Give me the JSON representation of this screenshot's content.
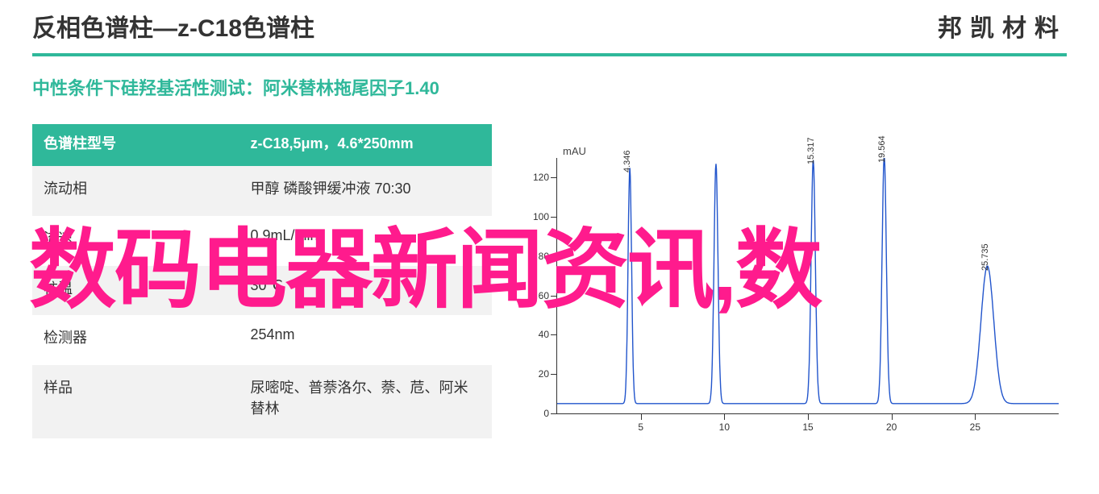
{
  "header": {
    "title": "反相色谱柱—z-C18色谱柱",
    "brand": "邦凯材料"
  },
  "subtitle": "中性条件下硅羟基活性测试：阿米替林拖尾因子1.40",
  "table": {
    "header_label": "色谱柱型号",
    "header_value": "z-C18,5μm，4.6*250mm",
    "rows": [
      {
        "label": "流动相",
        "value": "甲醇 磷酸钾缓冲液 70:30"
      },
      {
        "label": "流速",
        "value": "0.9mL/min"
      },
      {
        "label": "柱温",
        "value": "30℃"
      },
      {
        "label": "检测器",
        "value": "254nm"
      },
      {
        "label": "样品",
        "value": "尿嘧啶、普萘洛尔、萘、苊、阿米替林"
      }
    ],
    "header_bg": "#2fb89a",
    "header_color": "#ffffff",
    "stripe_bg": "#f2f2f2"
  },
  "chart": {
    "type": "chromatogram-line",
    "ylabel": "mAU",
    "xlim": [
      0,
      30
    ],
    "ylim": [
      0,
      130
    ],
    "xticks": [
      5,
      10,
      15,
      20,
      25
    ],
    "yticks": [
      0,
      20,
      40,
      60,
      80,
      100,
      120
    ],
    "line_color": "#2255cc",
    "line_width": 1.4,
    "axis_color": "#333333",
    "background_color": "#ffffff",
    "baseline": 5,
    "peaks": [
      {
        "rt": 4.346,
        "height": 120,
        "width": 0.25,
        "label": "4.346"
      },
      {
        "rt": 9.5,
        "height": 122,
        "width": 0.28,
        "label": ""
      },
      {
        "rt": 15.317,
        "height": 124,
        "width": 0.3,
        "label": "15.317"
      },
      {
        "rt": 19.564,
        "height": 126,
        "width": 0.3,
        "label": "19.564"
      },
      {
        "rt": 25.735,
        "height": 70,
        "width": 0.9,
        "label": "25.735"
      }
    ],
    "label_fontsize": 11
  },
  "overlay": {
    "text": "数码电器新闻资讯,数",
    "color": "#ff1b8d",
    "fontsize": 108
  }
}
